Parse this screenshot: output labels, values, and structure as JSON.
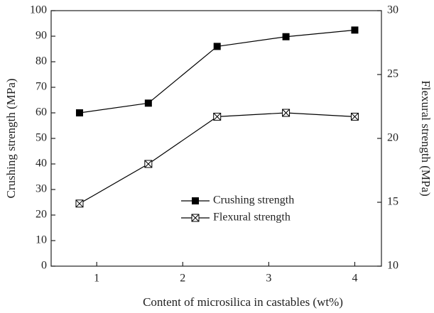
{
  "chart_data": {
    "type": "line",
    "x_label": "Content of microsilica in castables (wt%)",
    "y_label": "Crushing strength (MPa)",
    "y2_label": "Flexural strength (MPa)",
    "x": [
      0.8,
      1.6,
      2.4,
      3.2,
      4.0
    ],
    "series": [
      {
        "name": "Crushing strength",
        "color": "#000000",
        "marker": "filled-square",
        "values": [
          60,
          63.8,
          86,
          89.8,
          92.4
        ]
      },
      {
        "name": "Flexural strength",
        "color": "#000000",
        "marker": "crossed-square",
        "axis": "y2",
        "values": [
          14.9,
          18.0,
          21.7,
          22.0,
          21.7
        ]
      }
    ],
    "xlim": [
      0.47,
      4.31
    ],
    "xticks": [
      1,
      2,
      3,
      4
    ],
    "ylim": [
      0,
      100
    ],
    "yticks": [
      0,
      10,
      20,
      30,
      40,
      50,
      60,
      70,
      80,
      90,
      100
    ],
    "y2lim": [
      10,
      30
    ],
    "y2ticks": [
      10,
      15,
      20,
      25,
      30
    ],
    "legend": "lower center",
    "grid": false
  }
}
